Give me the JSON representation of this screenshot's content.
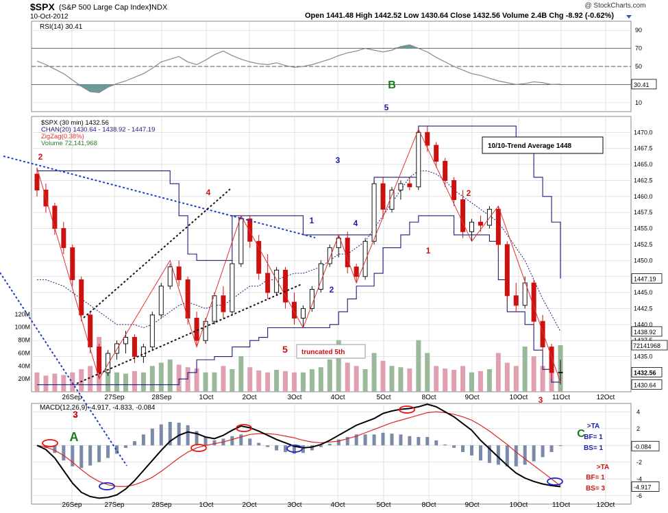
{
  "header": {
    "symbol": "$SPX",
    "name": "(S&P 500 Large Cap Index)",
    "exchange": "INDX",
    "date": "10-Oct-2012",
    "watermark": "@ StockCharts.com",
    "ohlc": "Open 1441.48   High 1442.52   Low 1430.64   Close 1432.56   Volume 2.4B   Chg -8.92 (-0.62%)"
  },
  "colors": {
    "panel_bg": "#ffffff",
    "grid": "#d8d8d8",
    "band": "#1a1a7a",
    "zigzag": "#e03030",
    "red_candle": "#cc1111",
    "green_candle": "#111111",
    "vol_up": "#9ab89a",
    "vol_down": "#e0a0b0",
    "wave_blue": "#1a1aaa",
    "wave_red": "#cc1111",
    "wave_green": "#1a7a1a"
  },
  "chart_data": [
    {
      "type": "line",
      "panel": "rsi",
      "label": "RSI(14) 30.41",
      "ylim": [
        0,
        100
      ],
      "yticks": [
        10,
        30,
        50,
        70,
        90
      ],
      "reference_lines": [
        30,
        50,
        70
      ],
      "last_value_label": "30.41",
      "x": [
        0,
        1,
        2,
        3,
        4,
        5,
        6,
        7,
        8,
        9,
        10,
        11,
        12,
        13,
        14,
        15,
        16,
        17,
        18,
        19,
        20,
        21,
        22,
        23,
        24,
        25,
        26,
        27,
        28,
        29,
        30,
        31,
        32,
        33,
        34,
        35,
        36,
        37,
        38,
        39,
        40,
        41,
        42,
        43,
        44,
        45,
        46,
        47,
        48,
        49,
        50,
        51,
        52,
        53,
        54,
        55,
        56,
        57,
        58,
        59
      ],
      "values": [
        56,
        52,
        47,
        42,
        35,
        28,
        22,
        21,
        27,
        31,
        34,
        38,
        42,
        48,
        55,
        58,
        61,
        55,
        52,
        57,
        63,
        67,
        62,
        58,
        55,
        53,
        52,
        54,
        51,
        49,
        50,
        52,
        55,
        58,
        62,
        65,
        67,
        70,
        68,
        66,
        68,
        72,
        74,
        70,
        66,
        60,
        55,
        50,
        46,
        42,
        40,
        37,
        34,
        32,
        30,
        31,
        33,
        32,
        30,
        30.41
      ]
    },
    {
      "type": "candlestick",
      "panel": "price",
      "label": "$SPX (30 min) 1432.56",
      "legend": [
        "$SPX (30 min) 1432.56",
        "CHAN(20) 1430.64 - 1438.92 - 1447.19",
        "ZigZag(0.38%)",
        "Volume 72,141,968"
      ],
      "ylim": [
        1429.5,
        1472.5
      ],
      "yticks": [
        1435,
        1437.5,
        1440,
        1442.5,
        1445,
        1447.5,
        1450,
        1452.5,
        1455,
        1457.5,
        1460,
        1462.5,
        1465,
        1467.5,
        1470
      ],
      "x_tick_labels": [
        "26Sep",
        "27Sep",
        "28Sep",
        "1Oct",
        "2Oct",
        "3Oct",
        "4Oct",
        "5Oct",
        "8Oct",
        "9Oct",
        "10Oct",
        "11Oct",
        "12Oct"
      ],
      "bars": [
        [
          1463.5,
          1464.5,
          1460.0,
          1461.0
        ],
        [
          1461.0,
          1462.0,
          1457.5,
          1458.5
        ],
        [
          1458.5,
          1459.0,
          1454.0,
          1455.0
        ],
        [
          1455.0,
          1456.0,
          1451.0,
          1452.0
        ],
        [
          1452.0,
          1452.5,
          1446.0,
          1447.0
        ],
        [
          1447.0,
          1447.5,
          1440.5,
          1441.5
        ],
        [
          1441.5,
          1442.0,
          1435.5,
          1436.5
        ],
        [
          1436.5,
          1437.0,
          1431.5,
          1432.5
        ],
        [
          1432.5,
          1436.0,
          1432.0,
          1435.5
        ],
        [
          1435.5,
          1437.5,
          1434.5,
          1437.0
        ],
        [
          1437.0,
          1439.0,
          1435.5,
          1438.0
        ],
        [
          1438.0,
          1438.5,
          1434.0,
          1435.0
        ],
        [
          1435.0,
          1437.0,
          1434.0,
          1436.5
        ],
        [
          1436.5,
          1442.0,
          1436.0,
          1441.5
        ],
        [
          1441.5,
          1446.5,
          1441.0,
          1446.0
        ],
        [
          1446.0,
          1449.5,
          1445.5,
          1449.0
        ],
        [
          1449.0,
          1450.0,
          1446.0,
          1447.0
        ],
        [
          1447.0,
          1447.5,
          1440.0,
          1441.0
        ],
        [
          1441.0,
          1442.0,
          1436.5,
          1437.5
        ],
        [
          1437.5,
          1441.0,
          1437.0,
          1440.5
        ],
        [
          1440.5,
          1445.0,
          1440.0,
          1444.5
        ],
        [
          1444.5,
          1446.0,
          1441.0,
          1442.0
        ],
        [
          1442.0,
          1450.0,
          1441.5,
          1449.5
        ],
        [
          1449.5,
          1457.0,
          1449.0,
          1456.5
        ],
        [
          1456.5,
          1457.0,
          1452.0,
          1453.0
        ],
        [
          1453.0,
          1454.0,
          1447.0,
          1448.0
        ],
        [
          1448.0,
          1451.0,
          1444.0,
          1445.0
        ],
        [
          1445.0,
          1449.0,
          1444.5,
          1448.5
        ],
        [
          1448.5,
          1449.0,
          1442.5,
          1443.5
        ],
        [
          1443.5,
          1445.0,
          1440.0,
          1441.0
        ],
        [
          1441.0,
          1443.0,
          1439.5,
          1442.5
        ],
        [
          1442.5,
          1446.0,
          1442.0,
          1445.5
        ],
        [
          1445.5,
          1450.0,
          1445.0,
          1449.5
        ],
        [
          1449.5,
          1452.5,
          1449.0,
          1452.0
        ],
        [
          1452.0,
          1454.0,
          1450.5,
          1453.5
        ],
        [
          1453.5,
          1454.5,
          1448.0,
          1449.0
        ],
        [
          1449.0,
          1449.5,
          1446.5,
          1447.5
        ],
        [
          1447.5,
          1453.5,
          1447.0,
          1453.0
        ],
        [
          1453.0,
          1462.5,
          1452.5,
          1462.0
        ],
        [
          1462.0,
          1463.0,
          1456.5,
          1458.0
        ],
        [
          1458.0,
          1461.5,
          1457.5,
          1461.0
        ],
        [
          1461.0,
          1462.5,
          1459.5,
          1462.0
        ],
        [
          1462.0,
          1463.0,
          1461.0,
          1461.5
        ],
        [
          1461.5,
          1470.5,
          1461.0,
          1470.0
        ],
        [
          1470.0,
          1471.0,
          1467.0,
          1468.0
        ],
        [
          1468.0,
          1468.5,
          1464.5,
          1465.5
        ],
        [
          1465.5,
          1466.0,
          1461.5,
          1462.5
        ],
        [
          1462.5,
          1463.0,
          1458.5,
          1459.5
        ],
        [
          1459.5,
          1461.0,
          1453.5,
          1454.5
        ],
        [
          1454.5,
          1456.5,
          1453.0,
          1456.0
        ],
        [
          1456.0,
          1457.0,
          1454.5,
          1455.5
        ],
        [
          1455.5,
          1458.5,
          1455.0,
          1458.0
        ],
        [
          1458.0,
          1458.5,
          1451.5,
          1452.5
        ],
        [
          1452.5,
          1453.0,
          1443.5,
          1444.5
        ],
        [
          1444.5,
          1446.5,
          1442.0,
          1443.0
        ],
        [
          1443.0,
          1447.5,
          1442.5,
          1446.5
        ],
        [
          1446.5,
          1447.0,
          1439.5,
          1440.5
        ],
        [
          1440.5,
          1441.5,
          1435.5,
          1436.5
        ],
        [
          1436.5,
          1437.0,
          1431.5,
          1432.5
        ],
        [
          1432.5,
          1434.5,
          1431.0,
          1432.56
        ]
      ],
      "chan_upper": [
        1464,
        1464,
        1464,
        1464,
        1464,
        1464,
        1464,
        1464,
        1464,
        1464,
        1464,
        1464,
        1464,
        1464,
        1464,
        1462,
        1457,
        1451,
        1450,
        1450,
        1450,
        1450,
        1457,
        1457,
        1457,
        1457,
        1457,
        1457,
        1457,
        1457,
        1454,
        1454,
        1454,
        1454,
        1454,
        1454,
        1454,
        1454,
        1463,
        1463,
        1463,
        1463,
        1463,
        1471,
        1471,
        1471,
        1471,
        1471,
        1471,
        1471,
        1471,
        1471,
        1471,
        1471,
        1469,
        1467,
        1463,
        1460,
        1456,
        1447.19
      ],
      "chan_lower": [
        1430.6,
        1430.6,
        1430.6,
        1430.6,
        1430.6,
        1430.6,
        1430.6,
        1430.6,
        1430.6,
        1430.6,
        1430.6,
        1430.6,
        1430.6,
        1430.6,
        1430.6,
        1430.6,
        1431.5,
        1432.5,
        1434.5,
        1434.5,
        1435.0,
        1435.0,
        1436.5,
        1436.5,
        1437.5,
        1438.0,
        1439.5,
        1439.5,
        1439.5,
        1439.5,
        1439.5,
        1439.5,
        1439.5,
        1440,
        1442,
        1444,
        1446,
        1446,
        1448,
        1452,
        1452,
        1454,
        1456,
        1457,
        1457,
        1457,
        1457,
        1454,
        1454,
        1454,
        1454,
        1453,
        1447,
        1442,
        1442,
        1440,
        1436,
        1433,
        1431,
        1430.64
      ],
      "chan_mid": [
        1447,
        1447,
        1446.5,
        1446,
        1445,
        1444,
        1443,
        1442,
        1441,
        1440,
        1440,
        1440,
        1439.5,
        1440,
        1441,
        1442,
        1443,
        1443.5,
        1443,
        1442.5,
        1443,
        1443,
        1444,
        1445,
        1446,
        1446,
        1447,
        1447,
        1447.5,
        1448,
        1448,
        1448.5,
        1449,
        1450,
        1451,
        1451,
        1452,
        1453,
        1455,
        1457,
        1459,
        1461,
        1463,
        1464,
        1464,
        1463.5,
        1462.5,
        1461,
        1460,
        1459,
        1458,
        1457,
        1456,
        1454,
        1452,
        1450,
        1447,
        1444,
        1441.5,
        1438.92
      ],
      "zigzag": [
        [
          0,
          1464.5
        ],
        [
          7,
          1431.5
        ],
        [
          15,
          1450.0
        ],
        [
          18,
          1436.5
        ],
        [
          23,
          1457.0
        ],
        [
          30,
          1439.5
        ],
        [
          34,
          1454.0
        ],
        [
          36,
          1446.5
        ],
        [
          43,
          1470.5
        ],
        [
          49,
          1453.0
        ],
        [
          52,
          1458.5
        ],
        [
          59,
          1431.0
        ]
      ],
      "price_tags": [
        "1447.19",
        "1438.92",
        "1432.56",
        "1430.64"
      ],
      "volume": {
        "ylim": [
          0,
          140
        ],
        "yticks_label": [
          "20M",
          "40M",
          "60M",
          "80M",
          "100M",
          "120M"
        ],
        "last_value_label": "72141968",
        "values": [
          30,
          25,
          28,
          26,
          30,
          35,
          40,
          85,
          45,
          30,
          28,
          32,
          30,
          40,
          45,
          50,
          42,
          38,
          36,
          30,
          30,
          40,
          35,
          55,
          38,
          33,
          30,
          34,
          32,
          30,
          30,
          35,
          38,
          50,
          80,
          45,
          40,
          35,
          60,
          48,
          40,
          38,
          36,
          80,
          60,
          40,
          36,
          34,
          40,
          30,
          32,
          35,
          60,
          45,
          40,
          70,
          55,
          40,
          35,
          72.14
        ],
        "up": [
          false,
          false,
          false,
          false,
          false,
          false,
          false,
          false,
          true,
          true,
          true,
          false,
          true,
          true,
          true,
          true,
          false,
          false,
          false,
          true,
          true,
          false,
          true,
          true,
          false,
          false,
          false,
          true,
          false,
          false,
          true,
          true,
          true,
          true,
          true,
          false,
          false,
          true,
          true,
          false,
          true,
          true,
          false,
          true,
          true,
          false,
          false,
          false,
          false,
          true,
          false,
          true,
          false,
          false,
          false,
          true,
          false,
          false,
          false,
          true
        ]
      },
      "annotations": [
        {
          "text": "2",
          "color": "red",
          "x": 1,
          "y": 1466.5
        },
        {
          "text": "3",
          "color": "red",
          "x": 7.4,
          "label_below": true
        },
        {
          "text": "4",
          "color": "red",
          "x": 15,
          "y": 1460.5
        },
        {
          "text": "5",
          "color": "red",
          "x": 18.5,
          "y": 1434.5
        },
        {
          "text": "truncated 5th",
          "color": "red",
          "boxed": true
        },
        {
          "text": "1",
          "color": "blue",
          "x": 23.8,
          "y": 1457.5
        },
        {
          "text": "2",
          "color": "blue",
          "x": 26,
          "y": 1440.5
        },
        {
          "text": "3",
          "color": "blue",
          "x": 27.3,
          "y": 1465
        },
        {
          "text": "4",
          "color": "blue",
          "x": 29,
          "y": 1454.5
        },
        {
          "text": "5",
          "color": "blue",
          "x": 34.5,
          "y": 1475
        },
        {
          "text": "B",
          "color": "green",
          "x": 34,
          "y": 1478
        },
        {
          "text": "1",
          "color": "red",
          "x": 41.5,
          "y": 1452
        },
        {
          "text": "2",
          "color": "red",
          "x": 47,
          "y": 1460.5
        },
        {
          "text": "3",
          "color": "red",
          "x": 53.5,
          "label_below": true
        },
        {
          "text": "10/10-Trend Average 1448",
          "boxed": true
        }
      ]
    },
    {
      "type": "line",
      "panel": "macd",
      "label": "MACD(12,26,9) -4.917, -4.833, -0.084",
      "ylim": [
        -7,
        5
      ],
      "yticks": [
        -6,
        -4,
        -2,
        0,
        2,
        4
      ],
      "macd": [
        0,
        -0.5,
        -1.5,
        -3,
        -4.5,
        -5.6,
        -6.1,
        -6.3,
        -6.2,
        -5.9,
        -5.2,
        -4.2,
        -3.0,
        -1.8,
        -0.6,
        0.5,
        1.2,
        1.6,
        1.4,
        1.0,
        0.8,
        1.2,
        1.8,
        2.3,
        2.1,
        1.7,
        1.2,
        0.7,
        0.3,
        -0.1,
        -0.3,
        -0.2,
        0.1,
        0.6,
        1.2,
        1.8,
        2.4,
        2.8,
        3.2,
        3.8,
        4.1,
        4.3,
        4.4,
        4.6,
        4.9,
        4.6,
        4.0,
        3.4,
        2.6,
        1.8,
        0.6,
        -0.4,
        -1.4,
        -2.4,
        -3.3,
        -3.9,
        -4.3,
        -4.6,
        -4.8,
        -4.917
      ],
      "signal": [
        0,
        -0.2,
        -0.6,
        -1.2,
        -2.0,
        -2.9,
        -3.7,
        -4.3,
        -4.7,
        -4.9,
        -4.9,
        -4.7,
        -4.3,
        -3.8,
        -3.1,
        -2.3,
        -1.5,
        -0.8,
        -0.3,
        0.0,
        0.2,
        0.4,
        0.7,
        1.0,
        1.3,
        1.4,
        1.4,
        1.3,
        1.1,
        0.9,
        0.6,
        0.4,
        0.3,
        0.4,
        0.5,
        0.8,
        1.1,
        1.5,
        1.9,
        2.3,
        2.7,
        3.0,
        3.3,
        3.6,
        3.9,
        4.0,
        3.9,
        3.7,
        3.4,
        3.0,
        2.4,
        1.7,
        0.9,
        0.1,
        -0.8,
        -1.6,
        -2.4,
        -3.2,
        -4.0,
        -4.833
      ],
      "histogram": [
        0,
        -0.3,
        -0.9,
        -1.8,
        -2.5,
        -2.7,
        -2.4,
        -2.0,
        -1.5,
        -1.0,
        -0.3,
        0.5,
        1.3,
        2.0,
        2.5,
        2.8,
        2.7,
        2.4,
        1.7,
        1.0,
        0.6,
        0.8,
        1.1,
        1.3,
        0.8,
        0.3,
        -0.2,
        -0.6,
        -0.8,
        -1.0,
        -0.9,
        -0.6,
        -0.2,
        0.2,
        0.7,
        1.0,
        1.3,
        1.3,
        1.3,
        1.5,
        1.4,
        1.3,
        1.1,
        1.0,
        1.0,
        0.6,
        0.1,
        -0.3,
        -0.8,
        -1.2,
        -1.8,
        -2.1,
        -2.3,
        -2.5,
        -2.5,
        -2.3,
        -1.9,
        -1.4,
        -0.8,
        -0.084
      ],
      "value_tags": [
        "-0.084",
        "-4.917"
      ],
      "annotations": [
        {
          "text": "3",
          "color": "red"
        },
        {
          "text": "A",
          "color": "green"
        },
        {
          "text": "C",
          "color": "green"
        },
        {
          "text": ">TA",
          "color": "blue"
        },
        {
          "text": "BF= 1",
          "color": "blue"
        },
        {
          "text": "BS= 1",
          "color": "blue"
        },
        {
          "text": ">TA",
          "color": "red"
        },
        {
          "text": "BF= 1",
          "color": "red"
        },
        {
          "text": "BS= 3",
          "color": "red"
        }
      ]
    }
  ]
}
